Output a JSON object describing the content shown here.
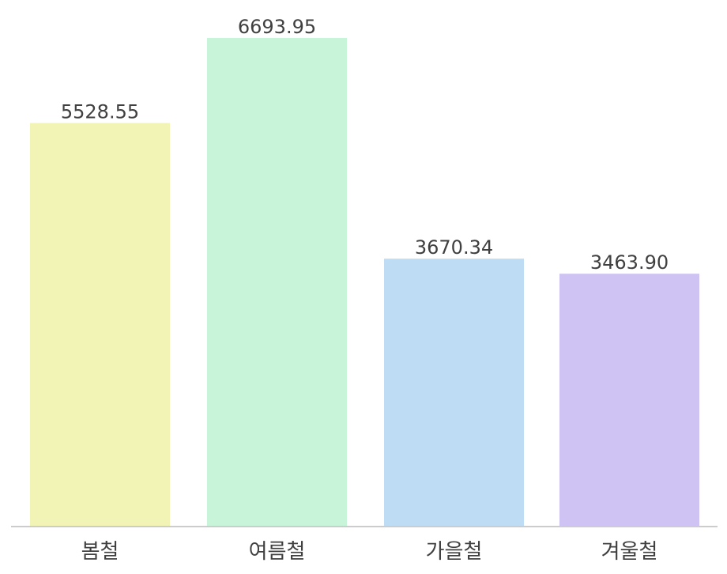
{
  "chart_data": {
    "type": "bar",
    "categories": [
      "봄철",
      "여름철",
      "가을철",
      "겨울철"
    ],
    "values": [
      5528.55,
      6693.95,
      3670.34,
      3463.9
    ],
    "value_labels": [
      "5528.55",
      "6693.95",
      "3670.34",
      "3463.90"
    ],
    "colors": [
      "#f2f4b6",
      "#c8f5da",
      "#bedcf4",
      "#cfc3f3"
    ],
    "axis_color": "#cccccc",
    "text_color": "#404040",
    "ylim": [
      0,
      6693.95
    ],
    "grid": false,
    "legend": "none",
    "title": "",
    "xlabel": "",
    "ylabel": ""
  }
}
